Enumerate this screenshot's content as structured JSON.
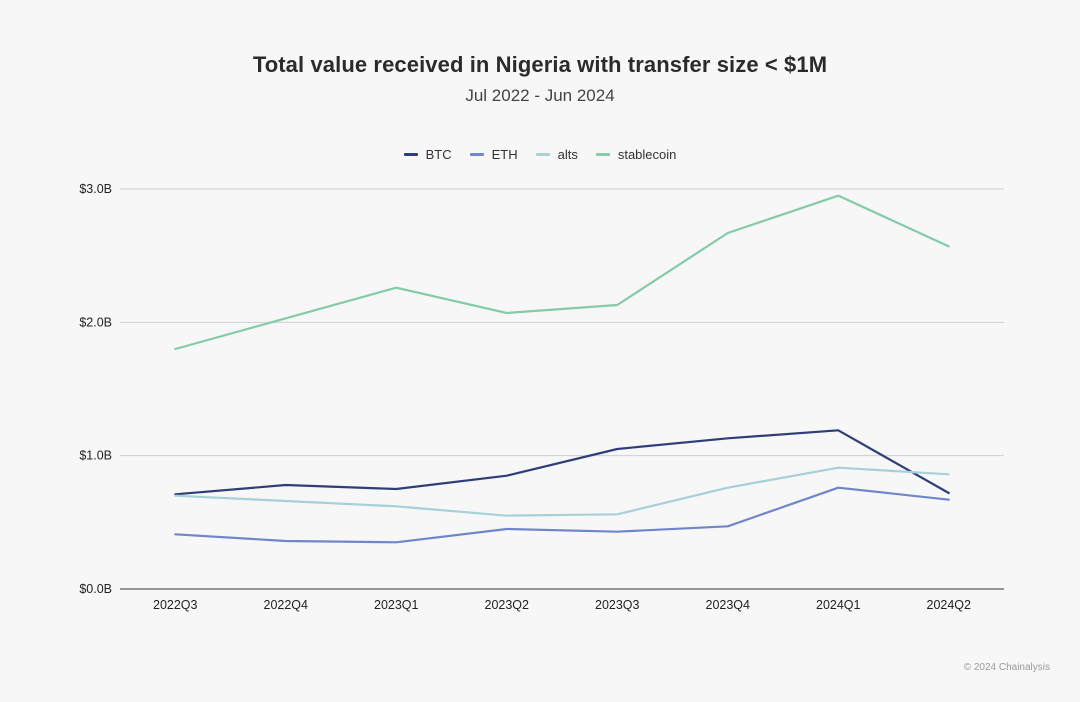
{
  "chart_data": {
    "type": "line",
    "title": "Total value received in Nigeria with transfer size < $1M",
    "subtitle": "Jul 2022 - Jun 2024",
    "xlabel": "",
    "ylabel": "",
    "categories": [
      "2022Q3",
      "2022Q4",
      "2023Q1",
      "2023Q2",
      "2023Q3",
      "2023Q4",
      "2024Q1",
      "2024Q2"
    ],
    "ylim": [
      0,
      3.0
    ],
    "y_ticks": [
      {
        "value": 0,
        "label": "$0.0B"
      },
      {
        "value": 1.0,
        "label": "$1.0B"
      },
      {
        "value": 2.0,
        "label": "$2.0B"
      },
      {
        "value": 3.0,
        "label": "$3.0B"
      }
    ],
    "grid": true,
    "legend_position": "top-center",
    "series": [
      {
        "name": "BTC",
        "color": "#2e3f78",
        "values": [
          0.71,
          0.78,
          0.75,
          0.85,
          1.05,
          1.13,
          1.19,
          0.72
        ]
      },
      {
        "name": "ETH",
        "color": "#6f86c9",
        "values": [
          0.41,
          0.36,
          0.35,
          0.45,
          0.43,
          0.47,
          0.76,
          0.67
        ]
      },
      {
        "name": "alts",
        "color": "#a8d0da",
        "values": [
          0.7,
          0.66,
          0.62,
          0.55,
          0.56,
          0.76,
          0.91,
          0.86
        ]
      },
      {
        "name": "stablecoin",
        "color": "#84cba9",
        "values": [
          1.8,
          2.03,
          2.26,
          2.07,
          2.13,
          2.67,
          2.95,
          2.57
        ]
      }
    ]
  },
  "footer": {
    "copyright": "© 2024 Chainalysis"
  }
}
